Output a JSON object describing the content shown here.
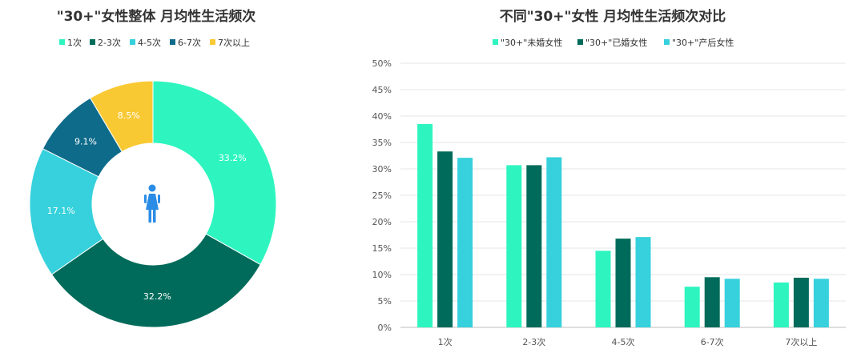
{
  "colors": {
    "c1": "#2ef5c0",
    "c2": "#006b5a",
    "c3": "#36d1dc",
    "c4": "#0f6b8a",
    "c5": "#f9c934",
    "icon": "#2b8ce6"
  },
  "chart_data": [
    {
      "type": "pie",
      "variant": "donut",
      "title": "\"30+\"女性整体  月均性生活频次",
      "legend_position": "top",
      "center_icon": "woman-icon",
      "categories": [
        "1次",
        "2-3次",
        "4-5次",
        "6-7次",
        "7次以上"
      ],
      "values": [
        33.2,
        32.2,
        17.1,
        9.1,
        8.5
      ],
      "labels": [
        "33.2%",
        "32.2%",
        "17.1%",
        "9.1%",
        "8.5%"
      ]
    },
    {
      "type": "bar",
      "title": "不同\"30+\"女性  月均性生活频次对比",
      "legend_position": "top",
      "grid": true,
      "categories": [
        "1次",
        "2-3次",
        "4-5次",
        "6-7次",
        "7次以上"
      ],
      "ylim": [
        0,
        50
      ],
      "yticks": [
        "0%",
        "5%",
        "10%",
        "15%",
        "20%",
        "25%",
        "30%",
        "35%",
        "40%",
        "45%",
        "50%"
      ],
      "series": [
        {
          "name": "\"30+\"未婚女性",
          "values": [
            38.5,
            30.7,
            14.5,
            7.7,
            8.5
          ]
        },
        {
          "name": "\"30+\"已婚女性",
          "values": [
            33.3,
            30.7,
            16.8,
            9.5,
            9.4
          ]
        },
        {
          "name": "\"30+\"产后女性",
          "values": [
            32.1,
            32.2,
            17.1,
            9.2,
            9.2
          ]
        }
      ]
    }
  ]
}
